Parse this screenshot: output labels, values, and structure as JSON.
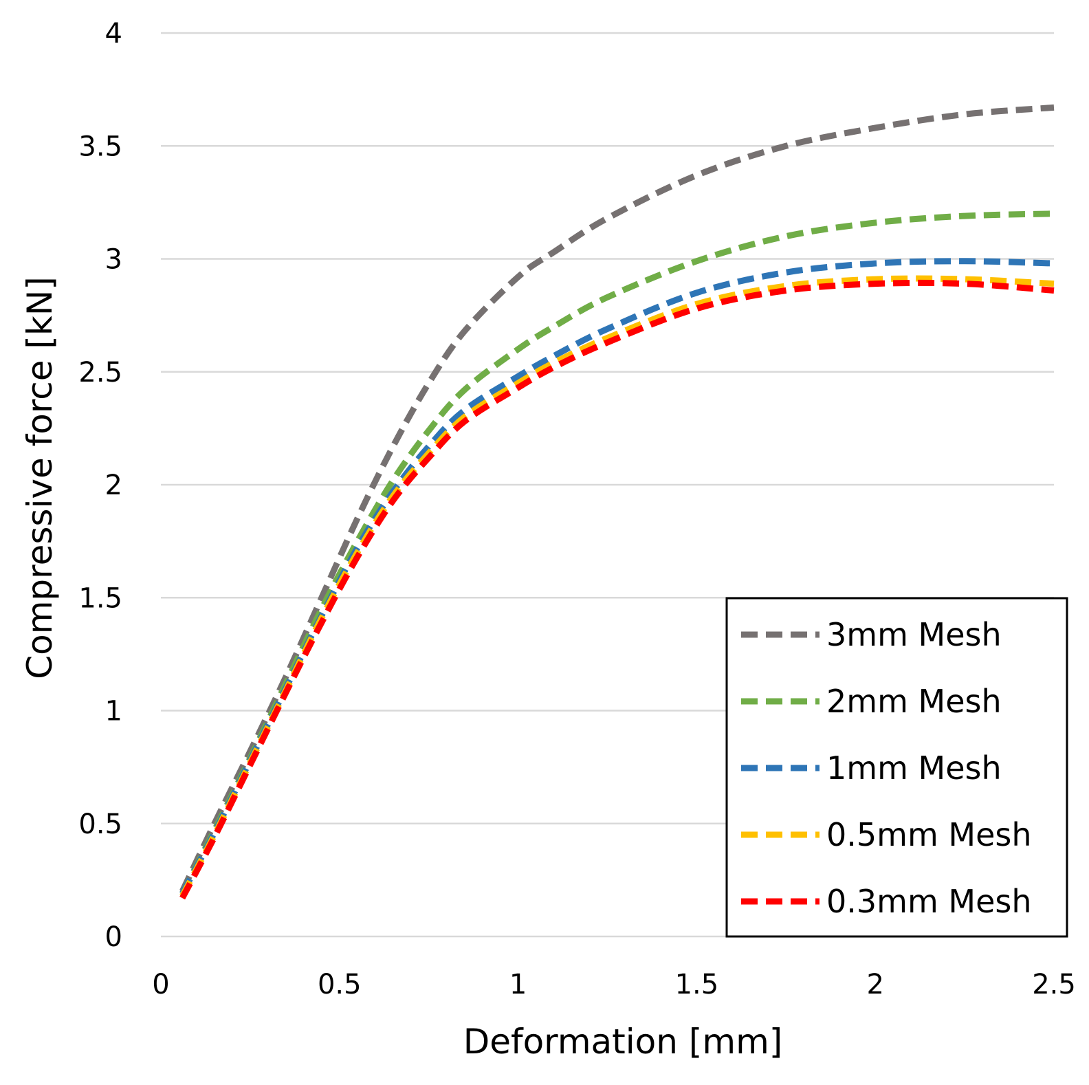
{
  "chart_data": {
    "type": "line",
    "title": "",
    "xlabel": "Deformation [mm]",
    "ylabel": "Compressive force [kN]",
    "xlim": [
      0,
      2.5
    ],
    "ylim": [
      0,
      4
    ],
    "x_ticks": [
      "0",
      "0.5",
      "1",
      "1.5",
      "2",
      "2.5"
    ],
    "y_ticks": [
      "0",
      "0.5",
      "1",
      "1.5",
      "2",
      "2.5",
      "3",
      "3.5",
      "4"
    ],
    "grid": "horizontal",
    "legend_position": "bottom-right",
    "line_style": "dashed",
    "x": [
      0.06,
      0.15,
      0.25,
      0.35,
      0.45,
      0.55,
      0.65,
      0.75,
      0.85,
      1.0,
      1.1,
      1.25,
      1.5,
      1.75,
      2.0,
      2.25,
      2.5
    ],
    "series": [
      {
        "name": "3mm Mesh",
        "color": "#767171",
        "values": [
          0.2,
          0.5,
          0.82,
          1.15,
          1.5,
          1.85,
          2.17,
          2.45,
          2.68,
          2.92,
          3.03,
          3.18,
          3.37,
          3.5,
          3.58,
          3.64,
          3.67
        ]
      },
      {
        "name": "2mm Mesh",
        "color": "#70ad47",
        "values": [
          0.19,
          0.47,
          0.79,
          1.12,
          1.45,
          1.75,
          2.02,
          2.24,
          2.42,
          2.6,
          2.7,
          2.83,
          2.99,
          3.1,
          3.16,
          3.19,
          3.2
        ]
      },
      {
        "name": "1mm Mesh",
        "color": "#2e75b6",
        "values": [
          0.19,
          0.46,
          0.78,
          1.1,
          1.42,
          1.72,
          1.97,
          2.17,
          2.33,
          2.48,
          2.57,
          2.69,
          2.85,
          2.94,
          2.98,
          2.99,
          2.98
        ]
      },
      {
        "name": "0.5mm Mesh",
        "color": "#ffc000",
        "values": [
          0.18,
          0.45,
          0.77,
          1.09,
          1.41,
          1.7,
          1.95,
          2.14,
          2.3,
          2.45,
          2.54,
          2.65,
          2.8,
          2.88,
          2.91,
          2.91,
          2.89
        ]
      },
      {
        "name": "0.3mm Mesh",
        "color": "#ff0000",
        "values": [
          0.17,
          0.44,
          0.76,
          1.08,
          1.39,
          1.68,
          1.93,
          2.12,
          2.28,
          2.43,
          2.52,
          2.63,
          2.78,
          2.86,
          2.89,
          2.89,
          2.86
        ]
      }
    ]
  }
}
